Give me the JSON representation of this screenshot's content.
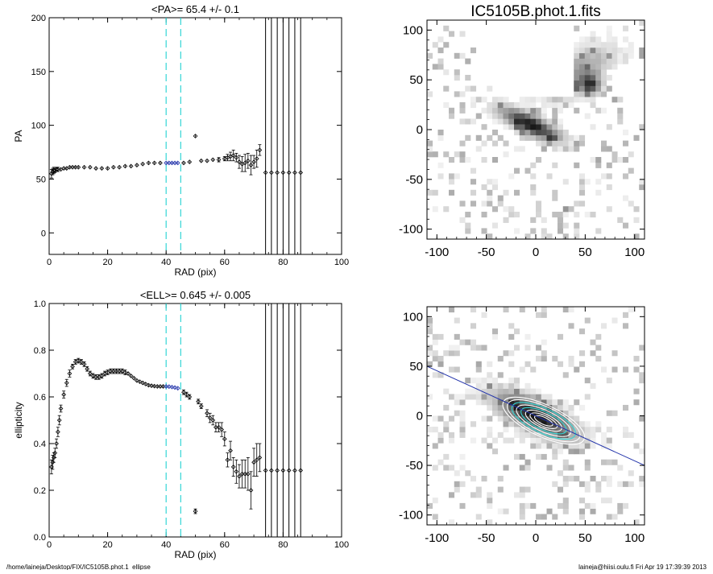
{
  "footer": {
    "left": "/home/laineja/Desktop/FIX/IC5105B.phot.1_ellipse",
    "right": "laineja@hiisi.oulu.fi  Fri Apr 19 17:39:39 2013"
  },
  "colors": {
    "cyan": "#33d6d6",
    "blue": "#2233aa",
    "mark": "#000000"
  },
  "chart_data": [
    {
      "type": "scatter",
      "title": "<PA>=  65.4 +/-   0.1",
      "xlabel": "RAD (pix)",
      "ylabel": "PA",
      "xlim": [
        0,
        100
      ],
      "ylim": [
        -20,
        200
      ],
      "xticks": [
        "0",
        "20",
        "40",
        "60",
        "80",
        "100"
      ],
      "yticks": [
        "0",
        "50",
        "100",
        "150",
        "200"
      ],
      "vlines_dashed": [
        40,
        45
      ],
      "vlines_solid": [
        74,
        76,
        78,
        80,
        82,
        84,
        86
      ],
      "series": [
        {
          "x": [
            0.8,
            1.2,
            1.6,
            2.0,
            2.5,
            3,
            4,
            5,
            6,
            7,
            8,
            9,
            10,
            12,
            14,
            16,
            18,
            20,
            22,
            24,
            26,
            28,
            30,
            32,
            34,
            36,
            38
          ],
          "y": [
            55,
            57,
            58,
            58,
            59,
            59,
            59,
            60,
            60,
            61,
            61,
            61,
            61,
            61,
            61,
            60,
            60,
            60,
            61,
            61,
            62,
            62,
            63,
            64,
            65,
            65,
            65
          ],
          "err": [
            4,
            3,
            3,
            2,
            2,
            2,
            1,
            1,
            1,
            1,
            1,
            1,
            1,
            1,
            1,
            1,
            1,
            1,
            1,
            1,
            1,
            1,
            1,
            1,
            1,
            1,
            1
          ]
        },
        {
          "color": "blue",
          "x": [
            40,
            41,
            42,
            43,
            44
          ],
          "y": [
            65,
            65,
            65,
            65,
            65
          ],
          "err": [
            1,
            1,
            1,
            1,
            1
          ]
        },
        {
          "x": [
            46,
            48,
            50,
            52,
            54,
            56,
            58,
            60,
            61,
            62,
            63,
            64,
            65,
            66,
            67,
            68,
            69,
            70,
            71,
            72,
            74,
            76,
            78,
            80,
            82,
            84,
            86
          ],
          "y": [
            65,
            66,
            90,
            67,
            67,
            68,
            68,
            69,
            70,
            71,
            72,
            70,
            66,
            64,
            65,
            67,
            63,
            66,
            69,
            77,
            56,
            56,
            56,
            56,
            56,
            56,
            56
          ],
          "err": [
            1,
            1,
            1,
            1,
            1,
            1,
            2,
            2,
            3,
            4,
            5,
            4,
            6,
            7,
            8,
            7,
            9,
            6,
            8,
            5,
            0,
            0,
            0,
            0,
            0,
            0,
            0
          ]
        }
      ]
    },
    {
      "type": "scatter",
      "title": "<ELL>= 0.645 +/-  0.005",
      "xlabel": "RAD (pix)",
      "ylabel": "ellipticity",
      "xlim": [
        0,
        100
      ],
      "ylim": [
        0,
        1
      ],
      "xticks": [
        "0",
        "20",
        "40",
        "60",
        "80",
        "100"
      ],
      "yticks": [
        "0.0",
        "0.2",
        "0.4",
        "0.6",
        "0.8",
        "1.0"
      ],
      "vlines_dashed": [
        40,
        45
      ],
      "vlines_solid": [
        74,
        76,
        78,
        80,
        82,
        84,
        86
      ],
      "series": [
        {
          "x": [
            0.8,
            1.2,
            1.6,
            2,
            2.5,
            3,
            3.5,
            4,
            5,
            6,
            7,
            8,
            9,
            10,
            11,
            12,
            13,
            14,
            15,
            16,
            17,
            18,
            19,
            20,
            21,
            22,
            23,
            24,
            25,
            26,
            27,
            28,
            29,
            30,
            31,
            32,
            33,
            34,
            35,
            36,
            37,
            38,
            39
          ],
          "y": [
            0.3,
            0.32,
            0.34,
            0.36,
            0.4,
            0.45,
            0.5,
            0.55,
            0.61,
            0.66,
            0.7,
            0.73,
            0.75,
            0.755,
            0.75,
            0.74,
            0.72,
            0.7,
            0.69,
            0.685,
            0.685,
            0.69,
            0.7,
            0.705,
            0.71,
            0.71,
            0.71,
            0.71,
            0.71,
            0.705,
            0.7,
            0.69,
            0.68,
            0.67,
            0.665,
            0.66,
            0.655,
            0.65,
            0.648,
            0.646,
            0.645,
            0.645,
            0.645
          ],
          "err": [
            0.03,
            0.03,
            0.02,
            0.02,
            0.02,
            0.02,
            0.02,
            0.015,
            0.015,
            0.015,
            0.015,
            0.01,
            0.01,
            0.01,
            0.01,
            0.01,
            0.01,
            0.01,
            0.01,
            0.01,
            0.01,
            0.01,
            0.01,
            0.01,
            0.01,
            0.01,
            0.01,
            0.01,
            0.01,
            0.01,
            0.005,
            0.005,
            0.005,
            0.005,
            0.005,
            0.005,
            0.005,
            0.005,
            0.005,
            0.005,
            0.005,
            0.005,
            0.005
          ]
        },
        {
          "color": "blue",
          "x": [
            40,
            41,
            42,
            43,
            44
          ],
          "y": [
            0.645,
            0.644,
            0.642,
            0.64,
            0.637
          ],
          "err": [
            0.005,
            0.005,
            0.005,
            0.005,
            0.005
          ]
        },
        {
          "x": [
            46,
            47,
            48,
            50,
            51,
            52,
            54,
            55,
            56,
            57,
            58,
            59,
            60,
            61,
            62,
            63,
            64,
            65,
            66,
            67,
            68,
            69,
            70,
            71,
            72,
            74,
            76,
            78,
            80,
            82,
            84,
            86
          ],
          "y": [
            0.62,
            0.61,
            0.6,
            0.11,
            0.58,
            0.56,
            0.53,
            0.51,
            0.5,
            0.47,
            0.47,
            0.46,
            0.42,
            0.33,
            0.37,
            0.3,
            0.28,
            0.26,
            0.27,
            0.27,
            0.27,
            0.2,
            0.32,
            0.33,
            0.34,
            0.285,
            0.285,
            0.285,
            0.285,
            0.285,
            0.285,
            0.285
          ],
          "err": [
            0.01,
            0.01,
            0.01,
            0.01,
            0.01,
            0.01,
            0.015,
            0.02,
            0.02,
            0.02,
            0.02,
            0.03,
            0.03,
            0.03,
            0.04,
            0.04,
            0.05,
            0.05,
            0.06,
            0.06,
            0.07,
            0.08,
            0.06,
            0.07,
            0.06,
            0,
            0,
            0,
            0,
            0,
            0,
            0
          ]
        }
      ]
    },
    {
      "type": "heatmap",
      "title": "IC5105B.phot.1.fits",
      "xlim": [
        -110,
        110
      ],
      "ylim": [
        -110,
        110
      ],
      "xticks": [
        "-100",
        "-50",
        "0",
        "50",
        "100"
      ],
      "yticks": [
        "-100",
        "-50",
        "0",
        "50",
        "100"
      ],
      "colormap": "gray_reversed",
      "sources": [
        {
          "x": -5,
          "y": 5,
          "peak": 1.0,
          "rx": 30,
          "ry": 9,
          "angle_deg": -25
        },
        {
          "x": 55,
          "y": 45,
          "peak": 0.8,
          "rx": 9,
          "ry": 9,
          "angle_deg": 0
        },
        {
          "x": 42,
          "y": 58,
          "peak": 0.45,
          "rx": 38,
          "ry": 18,
          "angle_deg": 30
        },
        {
          "x": 32,
          "y": -80,
          "peak": 0.55,
          "rx": 4,
          "ry": 4,
          "angle_deg": 0
        }
      ],
      "masked_regions": [
        "upper-left wedge",
        "right wedge near (90,35)"
      ]
    },
    {
      "type": "heatmap",
      "title": "",
      "xlim": [
        -110,
        110
      ],
      "ylim": [
        -110,
        110
      ],
      "xticks": [
        "-100",
        "-50",
        "0",
        "50",
        "100"
      ],
      "yticks": [
        "-100",
        "-50",
        "0",
        "50",
        "100"
      ],
      "colormap": "gray_reversed",
      "sources": [
        {
          "x": 0,
          "y": 0,
          "peak": 1.0,
          "rx": 40,
          "ry": 14,
          "angle_deg": -25
        }
      ],
      "contours": {
        "center": [
          8,
          -5
        ],
        "angle_deg": -25,
        "axis_ratio": 0.355,
        "semi_major": [
          10,
          15,
          20,
          25,
          30,
          35,
          40,
          45
        ],
        "colors": [
          "white",
          "white",
          "white",
          "cyan",
          "white",
          "cyan",
          "white",
          "white"
        ]
      },
      "pa_line": {
        "from": [
          -110,
          50
        ],
        "to": [
          110,
          -50
        ],
        "color": "blue"
      }
    }
  ]
}
